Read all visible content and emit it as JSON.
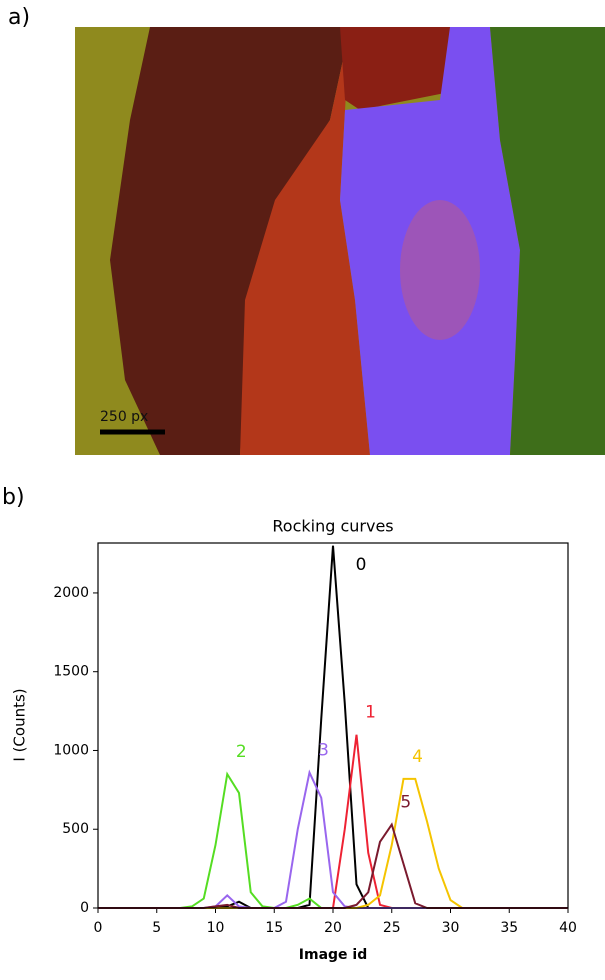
{
  "panel_a": {
    "label": "a)",
    "scale_bar": "250 px"
  },
  "panel_b": {
    "label": "b)"
  },
  "chart_data": {
    "type": "line",
    "title": "Rocking curves",
    "x_label": "Image id",
    "y_label": "I (Counts)",
    "x": [
      0,
      1,
      2,
      3,
      4,
      5,
      6,
      7,
      8,
      9,
      10,
      11,
      12,
      13,
      14,
      15,
      16,
      17,
      18,
      19,
      20,
      21,
      22,
      23,
      24,
      25,
      26,
      27,
      28,
      29,
      30,
      31,
      32,
      33,
      34,
      35,
      36,
      37,
      38,
      39,
      40
    ],
    "series": [
      {
        "name": "0",
        "color": "#000000",
        "values": [
          0,
          0,
          0,
          0,
          0,
          0,
          0,
          0,
          0,
          0,
          0,
          10,
          40,
          0,
          0,
          0,
          0,
          0,
          20,
          1200,
          2300,
          1300,
          150,
          0,
          0,
          0,
          0,
          0,
          0,
          0,
          0,
          0,
          0,
          0,
          0,
          0,
          0,
          0,
          0,
          0,
          0
        ]
      },
      {
        "name": "1",
        "color": "#ee2233",
        "values": [
          0,
          0,
          0,
          0,
          0,
          0,
          0,
          0,
          0,
          0,
          0,
          0,
          0,
          0,
          0,
          0,
          0,
          0,
          0,
          0,
          0,
          500,
          1100,
          350,
          20,
          0,
          0,
          0,
          0,
          0,
          0,
          0,
          0,
          0,
          0,
          0,
          0,
          0,
          0,
          0,
          0
        ]
      },
      {
        "name": "2",
        "color": "#55dd22",
        "values": [
          0,
          0,
          0,
          0,
          0,
          0,
          0,
          0,
          10,
          60,
          400,
          850,
          730,
          100,
          10,
          0,
          0,
          20,
          60,
          0,
          0,
          0,
          0,
          0,
          0,
          0,
          0,
          0,
          0,
          0,
          0,
          0,
          0,
          0,
          0,
          0,
          0,
          0,
          0,
          0,
          0
        ]
      },
      {
        "name": "3",
        "color": "#9966ee",
        "values": [
          0,
          0,
          0,
          0,
          0,
          0,
          0,
          0,
          0,
          0,
          10,
          80,
          10,
          0,
          0,
          0,
          40,
          500,
          860,
          700,
          100,
          10,
          0,
          0,
          0,
          0,
          0,
          0,
          0,
          0,
          0,
          0,
          0,
          0,
          0,
          0,
          0,
          0,
          0,
          0,
          0
        ]
      },
      {
        "name": "4",
        "color": "#f5c400",
        "values": [
          0,
          0,
          0,
          0,
          0,
          0,
          0,
          0,
          0,
          0,
          0,
          0,
          0,
          0,
          0,
          0,
          0,
          0,
          0,
          0,
          0,
          0,
          0,
          20,
          80,
          400,
          820,
          820,
          550,
          250,
          50,
          0,
          0,
          0,
          0,
          0,
          0,
          0,
          0,
          0,
          0
        ]
      },
      {
        "name": "5",
        "color": "#7a1a2e",
        "values": [
          0,
          0,
          0,
          0,
          0,
          0,
          0,
          0,
          0,
          0,
          10,
          20,
          0,
          0,
          0,
          0,
          0,
          0,
          0,
          0,
          0,
          0,
          20,
          100,
          420,
          530,
          280,
          30,
          0,
          0,
          0,
          0,
          0,
          0,
          0,
          0,
          0,
          0,
          0,
          0,
          0
        ]
      }
    ],
    "xlim": [
      0,
      40
    ],
    "ylim": [
      0,
      2317
    ],
    "xticks": [
      0,
      5,
      10,
      15,
      20,
      25,
      30,
      35,
      40
    ],
    "yticks": [
      0,
      500,
      1000,
      1500,
      2000
    ]
  }
}
